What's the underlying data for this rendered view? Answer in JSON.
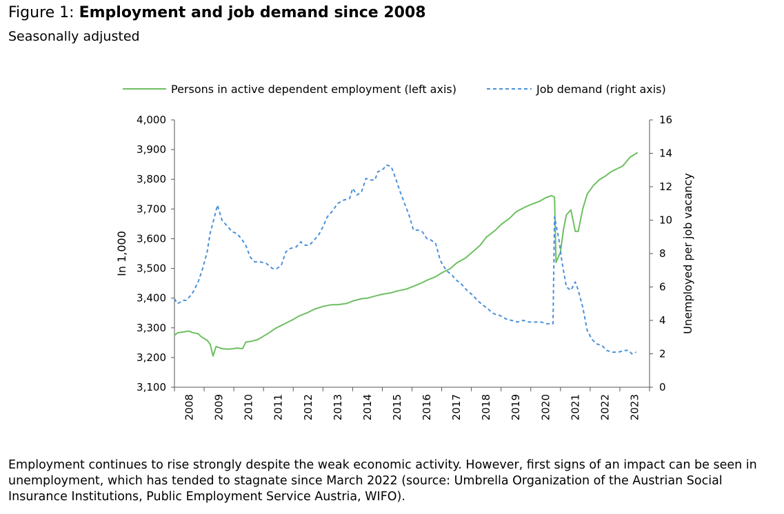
{
  "figure": {
    "label": "Figure 1:",
    "title": "Employment and job demand since 2008",
    "subtitle": "Seasonally adjusted",
    "caption": "Employment continues to rise strongly despite the weak economic activity. However, first signs of an impact can be seen in unemployment, which has tended to stagnate since March 2022 (source: Umbrella Organization of the Austrian Social Insurance Institutions, Public Employment Service Austria, WIFO)."
  },
  "colors": {
    "employment": "#6cbf5f",
    "job_demand": "#4a90d9",
    "axis": "#000000"
  },
  "chart_data": {
    "type": "line",
    "ylabel": "In 1,000",
    "y2label": "Unemployed per job vacancy",
    "ylim": [
      3100,
      4000
    ],
    "y2lim": [
      0,
      16
    ],
    "yticks": [
      "3,100",
      "3,200",
      "3,300",
      "3,400",
      "3,500",
      "3,600",
      "3,700",
      "3,800",
      "3,900",
      "4,000"
    ],
    "y2ticks": [
      "0",
      "2",
      "4",
      "6",
      "8",
      "10",
      "12",
      "14",
      "16"
    ],
    "xlim": [
      2008,
      2024
    ],
    "xticks": [
      "2008",
      "2009",
      "2010",
      "2011",
      "2012",
      "2013",
      "2014",
      "2015",
      "2016",
      "2017",
      "2018",
      "2019",
      "2020",
      "2021",
      "2022",
      "2023"
    ],
    "legend_position": "top",
    "grid": false,
    "series": [
      {
        "name": "Persons in active dependent employment (left axis)",
        "axis": "left",
        "style": "solid",
        "points": [
          [
            2008.0,
            3275
          ],
          [
            2008.1,
            3283
          ],
          [
            2008.3,
            3286
          ],
          [
            2008.5,
            3289
          ],
          [
            2008.6,
            3284
          ],
          [
            2008.8,
            3280
          ],
          [
            2008.9,
            3270
          ],
          [
            2009.1,
            3258
          ],
          [
            2009.2,
            3245
          ],
          [
            2009.3,
            3205
          ],
          [
            2009.4,
            3237
          ],
          [
            2009.6,
            3230
          ],
          [
            2009.8,
            3228
          ],
          [
            2010.0,
            3230
          ],
          [
            2010.1,
            3232
          ],
          [
            2010.3,
            3230
          ],
          [
            2010.4,
            3252
          ],
          [
            2010.6,
            3255
          ],
          [
            2010.8,
            3260
          ],
          [
            2011.0,
            3272
          ],
          [
            2011.2,
            3284
          ],
          [
            2011.4,
            3298
          ],
          [
            2011.6,
            3308
          ],
          [
            2011.8,
            3318
          ],
          [
            2012.0,
            3328
          ],
          [
            2012.2,
            3340
          ],
          [
            2012.5,
            3352
          ],
          [
            2012.7,
            3362
          ],
          [
            2013.0,
            3372
          ],
          [
            2013.3,
            3378
          ],
          [
            2013.5,
            3378
          ],
          [
            2013.8,
            3382
          ],
          [
            2014.0,
            3390
          ],
          [
            2014.3,
            3398
          ],
          [
            2014.5,
            3400
          ],
          [
            2014.8,
            3408
          ],
          [
            2015.0,
            3413
          ],
          [
            2015.3,
            3418
          ],
          [
            2015.5,
            3424
          ],
          [
            2015.8,
            3430
          ],
          [
            2016.0,
            3438
          ],
          [
            2016.3,
            3450
          ],
          [
            2016.5,
            3460
          ],
          [
            2016.8,
            3472
          ],
          [
            2017.0,
            3485
          ],
          [
            2017.3,
            3500
          ],
          [
            2017.5,
            3518
          ],
          [
            2017.8,
            3535
          ],
          [
            2018.0,
            3552
          ],
          [
            2018.3,
            3578
          ],
          [
            2018.5,
            3605
          ],
          [
            2018.8,
            3628
          ],
          [
            2019.0,
            3648
          ],
          [
            2019.3,
            3670
          ],
          [
            2019.5,
            3690
          ],
          [
            2019.8,
            3706
          ],
          [
            2020.0,
            3715
          ],
          [
            2020.3,
            3726
          ],
          [
            2020.5,
            3738
          ],
          [
            2020.7,
            3745
          ],
          [
            2020.8,
            3740
          ],
          [
            2020.85,
            3520
          ],
          [
            2021.0,
            3555
          ],
          [
            2021.1,
            3630
          ],
          [
            2021.2,
            3680
          ],
          [
            2021.35,
            3697
          ],
          [
            2021.5,
            3625
          ],
          [
            2021.6,
            3625
          ],
          [
            2021.75,
            3700
          ],
          [
            2021.9,
            3750
          ],
          [
            2022.1,
            3778
          ],
          [
            2022.3,
            3798
          ],
          [
            2022.5,
            3810
          ],
          [
            2022.7,
            3825
          ],
          [
            2022.9,
            3835
          ],
          [
            2023.1,
            3845
          ],
          [
            2023.35,
            3875
          ],
          [
            2023.6,
            3890
          ]
        ]
      },
      {
        "name": "Job demand (right axis)",
        "axis": "right",
        "style": "dashed",
        "points": [
          [
            2008.0,
            5.3
          ],
          [
            2008.1,
            5.0
          ],
          [
            2008.3,
            5.2
          ],
          [
            2008.4,
            5.2
          ],
          [
            2008.6,
            5.6
          ],
          [
            2008.8,
            6.3
          ],
          [
            2008.95,
            7.1
          ],
          [
            2009.1,
            8.1
          ],
          [
            2009.2,
            9.2
          ],
          [
            2009.35,
            10.2
          ],
          [
            2009.45,
            10.9
          ],
          [
            2009.6,
            10.0
          ],
          [
            2009.8,
            9.6
          ],
          [
            2009.95,
            9.3
          ],
          [
            2010.1,
            9.2
          ],
          [
            2010.25,
            8.9
          ],
          [
            2010.4,
            8.5
          ],
          [
            2010.55,
            7.8
          ],
          [
            2010.7,
            7.5
          ],
          [
            2010.9,
            7.5
          ],
          [
            2011.1,
            7.4
          ],
          [
            2011.3,
            7.1
          ],
          [
            2011.45,
            7.1
          ],
          [
            2011.6,
            7.3
          ],
          [
            2011.75,
            8.1
          ],
          [
            2011.9,
            8.3
          ],
          [
            2012.1,
            8.4
          ],
          [
            2012.25,
            8.7
          ],
          [
            2012.4,
            8.5
          ],
          [
            2012.55,
            8.5
          ],
          [
            2012.7,
            8.8
          ],
          [
            2012.85,
            9.1
          ],
          [
            2013.0,
            9.6
          ],
          [
            2013.15,
            10.2
          ],
          [
            2013.3,
            10.5
          ],
          [
            2013.5,
            11.0
          ],
          [
            2013.7,
            11.2
          ],
          [
            2013.9,
            11.3
          ],
          [
            2014.0,
            11.9
          ],
          [
            2014.15,
            11.5
          ],
          [
            2014.3,
            11.7
          ],
          [
            2014.45,
            12.5
          ],
          [
            2014.6,
            12.4
          ],
          [
            2014.75,
            12.4
          ],
          [
            2014.85,
            12.9
          ],
          [
            2015.0,
            13.0
          ],
          [
            2015.15,
            13.3
          ],
          [
            2015.3,
            13.2
          ],
          [
            2015.45,
            12.5
          ],
          [
            2015.6,
            11.7
          ],
          [
            2015.75,
            11.0
          ],
          [
            2015.9,
            10.3
          ],
          [
            2016.05,
            9.4
          ],
          [
            2016.2,
            9.4
          ],
          [
            2016.35,
            9.3
          ],
          [
            2016.5,
            8.9
          ],
          [
            2016.65,
            8.8
          ],
          [
            2016.8,
            8.6
          ],
          [
            2016.95,
            7.6
          ],
          [
            2017.15,
            7.0
          ],
          [
            2017.35,
            6.7
          ],
          [
            2017.5,
            6.4
          ],
          [
            2017.65,
            6.2
          ],
          [
            2017.85,
            5.8
          ],
          [
            2018.05,
            5.5
          ],
          [
            2018.2,
            5.2
          ],
          [
            2018.4,
            4.9
          ],
          [
            2018.55,
            4.7
          ],
          [
            2018.75,
            4.4
          ],
          [
            2018.95,
            4.3
          ],
          [
            2019.15,
            4.1
          ],
          [
            2019.35,
            4.0
          ],
          [
            2019.55,
            3.9
          ],
          [
            2019.75,
            4.0
          ],
          [
            2019.95,
            3.9
          ],
          [
            2020.15,
            3.9
          ],
          [
            2020.35,
            3.9
          ],
          [
            2020.55,
            3.8
          ],
          [
            2020.75,
            3.8
          ],
          [
            2020.8,
            10.2
          ],
          [
            2020.95,
            8.8
          ],
          [
            2021.05,
            7.5
          ],
          [
            2021.2,
            6.0
          ],
          [
            2021.35,
            5.8
          ],
          [
            2021.5,
            6.3
          ],
          [
            2021.6,
            5.8
          ],
          [
            2021.75,
            4.8
          ],
          [
            2021.9,
            3.4
          ],
          [
            2022.05,
            2.9
          ],
          [
            2022.2,
            2.6
          ],
          [
            2022.4,
            2.5
          ],
          [
            2022.55,
            2.2
          ],
          [
            2022.75,
            2.1
          ],
          [
            2022.95,
            2.1
          ],
          [
            2023.15,
            2.2
          ],
          [
            2023.3,
            2.2
          ],
          [
            2023.4,
            2.0
          ],
          [
            2023.55,
            2.1
          ]
        ]
      }
    ]
  }
}
